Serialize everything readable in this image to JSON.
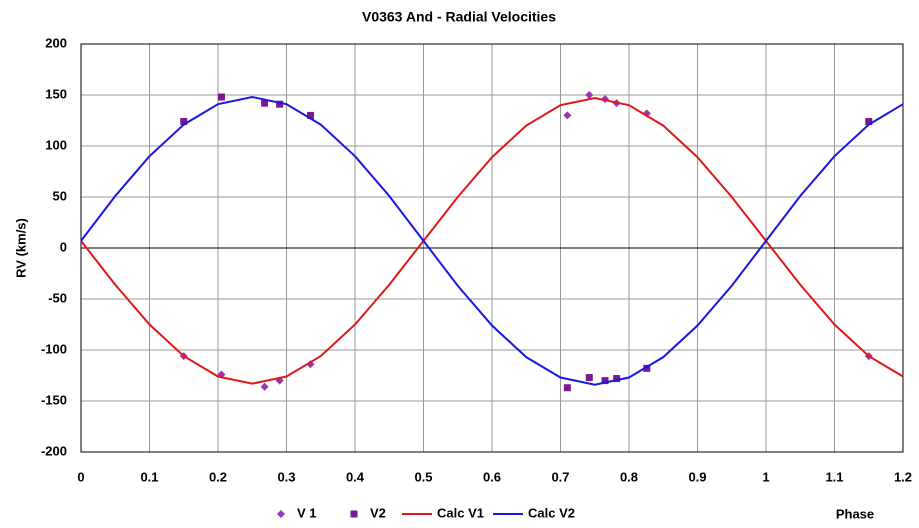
{
  "chart_data": {
    "type": "scatter",
    "title": "V0363 And - Radial Velocities",
    "x_label": "Phase",
    "y_label": "RV  (km/s)",
    "xlim": [
      0,
      1.2
    ],
    "xticks": [
      0,
      0.1,
      0.2,
      0.3,
      0.4,
      0.5,
      0.6,
      0.7,
      0.8,
      0.9,
      1,
      1.1,
      1.2
    ],
    "ylim": [
      -200,
      200
    ],
    "yticks": [
      -200,
      -150,
      -100,
      -50,
      0,
      50,
      100,
      150,
      200
    ],
    "grid": true,
    "legend": "bottom",
    "series": [
      {
        "name": "V 1",
        "color": "#9a34b4",
        "marker": "diamond",
        "x": [
          0.15,
          0.205,
          0.268,
          0.29,
          0.335,
          0.71,
          0.742,
          0.765,
          0.782,
          0.826,
          1.15
        ],
        "values": [
          -106,
          -124,
          -136,
          -130,
          -114,
          130,
          150,
          146,
          142,
          132,
          -106
        ]
      },
      {
        "name": "V2",
        "color": "#7a1a90",
        "marker": "square",
        "x": [
          0.15,
          0.205,
          0.268,
          0.29,
          0.335,
          0.71,
          0.742,
          0.765,
          0.782,
          0.826,
          1.15
        ],
        "values": [
          124,
          148,
          142,
          141,
          130,
          -137,
          -127,
          -130,
          -128,
          -118,
          124
        ]
      },
      {
        "name": "Calc V1",
        "color": "#e01818",
        "marker": "line",
        "x": [
          0,
          0.05,
          0.1,
          0.15,
          0.2,
          0.25,
          0.3,
          0.35,
          0.4,
          0.45,
          0.5,
          0.55,
          0.6,
          0.65,
          0.7,
          0.75,
          0.8,
          0.85,
          0.9,
          0.95,
          1,
          1.05,
          1.1,
          1.15,
          1.2
        ],
        "values": [
          7,
          -36,
          -75,
          -106,
          -126,
          -133,
          -126,
          -106,
          -75,
          -36,
          7,
          50,
          89,
          120,
          140,
          147,
          140,
          120,
          89,
          50,
          7,
          -36,
          -75,
          -106,
          -126
        ]
      },
      {
        "name": "Calc V2",
        "color": "#1818e0",
        "marker": "line",
        "x": [
          0,
          0.05,
          0.1,
          0.15,
          0.2,
          0.25,
          0.3,
          0.35,
          0.4,
          0.45,
          0.5,
          0.55,
          0.6,
          0.65,
          0.7,
          0.75,
          0.8,
          0.85,
          0.9,
          0.95,
          1,
          1.05,
          1.1,
          1.15,
          1.2
        ],
        "values": [
          7,
          51,
          90,
          121,
          141,
          148,
          141,
          121,
          90,
          51,
          7,
          -37,
          -76,
          -107,
          -127,
          -134,
          -127,
          -107,
          -76,
          -37,
          7,
          51,
          90,
          121,
          141
        ]
      }
    ]
  }
}
